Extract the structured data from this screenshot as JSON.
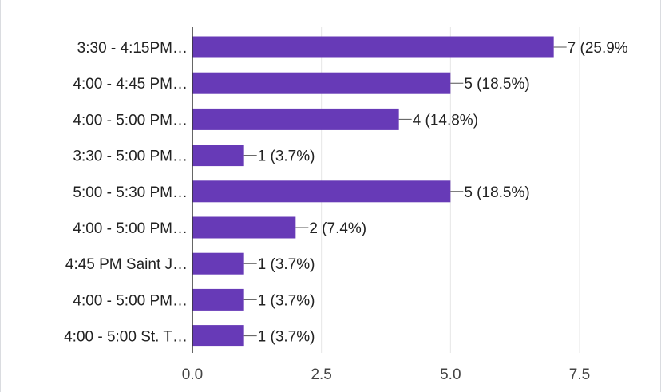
{
  "chart_data": {
    "type": "bar",
    "orientation": "horizontal",
    "title": "",
    "xlabel": "",
    "ylabel": "",
    "xlim": [
      0,
      7.5
    ],
    "grid": true,
    "bar_color": "#673ab7",
    "categories": [
      "3:30 - 4:15PM…",
      "4:00 - 4:45 PM…",
      "4:00 - 5:00 PM…",
      "3:30 - 5:00 PM…",
      "5:00 - 5:30 PM…",
      "4:00 - 5:00 PM…",
      "4:45 PM Saint J…",
      "4:00 - 5:00 PM…",
      "4:00 - 5:00 St. T…"
    ],
    "values": [
      7,
      5,
      4,
      1,
      5,
      2,
      1,
      1,
      1
    ],
    "value_labels": [
      "7 (25.9%",
      "5 (18.5%)",
      "4 (14.8%)",
      "1 (3.7%)",
      "5 (18.5%)",
      "2 (7.4%)",
      "1 (3.7%)",
      "1 (3.7%)",
      "1 (3.7%)"
    ],
    "ticks": [
      0,
      2.5,
      5,
      7.5
    ],
    "tick_labels": [
      "0.0",
      "2.5",
      "5.0",
      "7.5"
    ]
  }
}
